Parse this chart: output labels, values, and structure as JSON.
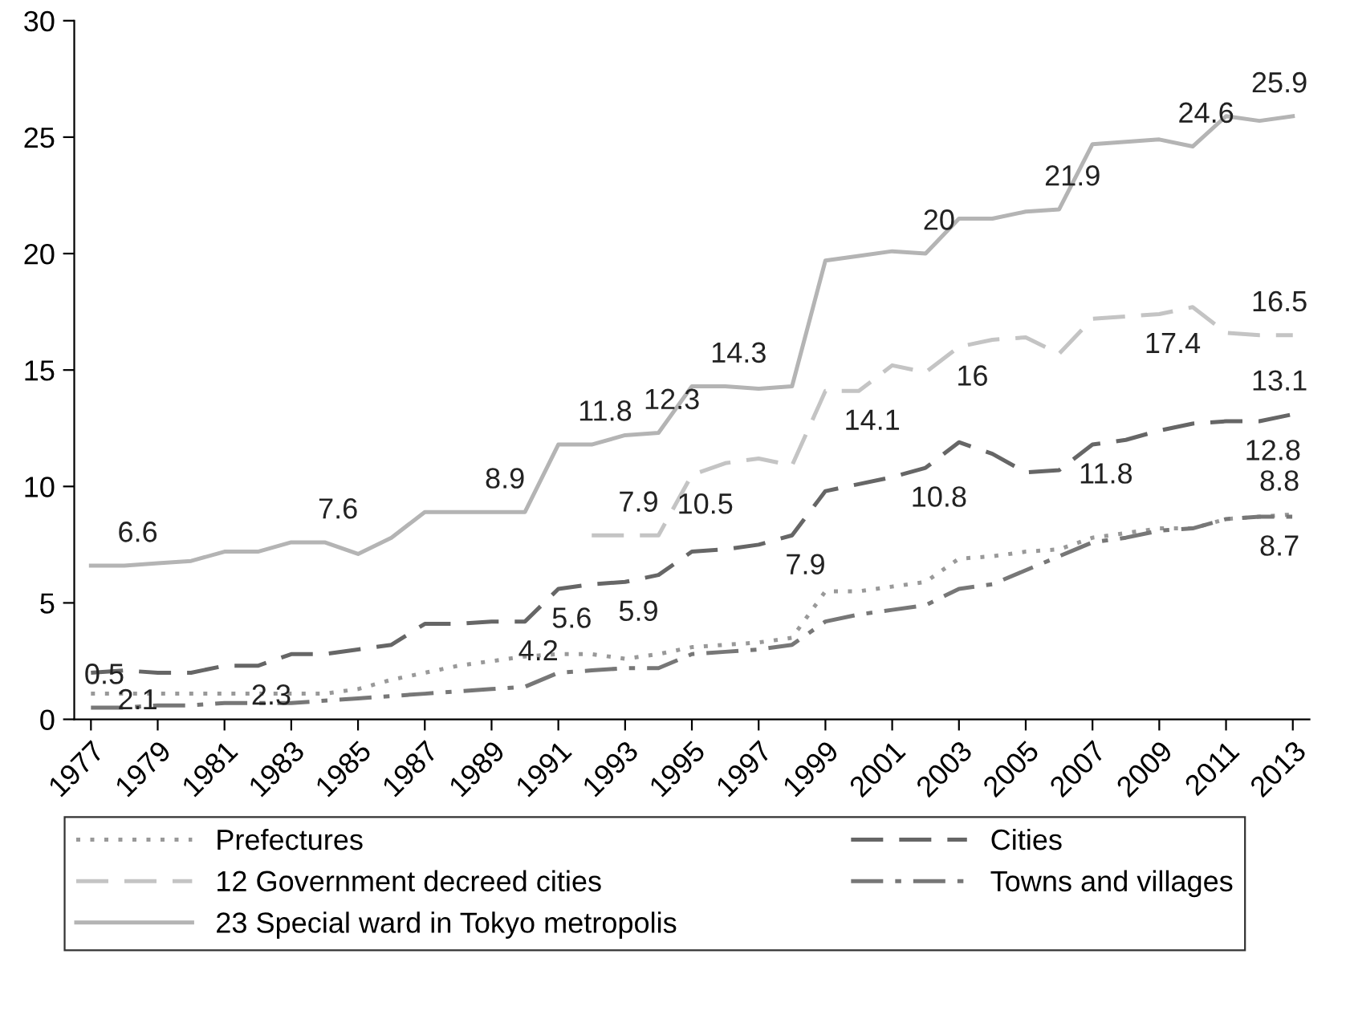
{
  "chart_data": {
    "type": "line",
    "x": [
      1977,
      1978,
      1979,
      1980,
      1981,
      1982,
      1983,
      1984,
      1985,
      1986,
      1987,
      1988,
      1989,
      1990,
      1991,
      1992,
      1993,
      1994,
      1995,
      1996,
      1997,
      1998,
      1999,
      2000,
      2001,
      2002,
      2003,
      2004,
      2005,
      2006,
      2007,
      2008,
      2009,
      2010,
      2011,
      2012,
      2013
    ],
    "series": [
      {
        "name": "Prefectures",
        "color": "#999999",
        "line_style": "dotted",
        "values": [
          1.1,
          1.1,
          1.1,
          1.1,
          1.1,
          1.1,
          1.1,
          1.1,
          1.3,
          1.7,
          2.0,
          2.3,
          2.5,
          2.7,
          2.8,
          2.8,
          2.6,
          2.8,
          3.1,
          3.2,
          3.3,
          3.5,
          5.5,
          5.5,
          5.7,
          5.9,
          6.9,
          7.0,
          7.2,
          7.3,
          7.8,
          8.0,
          8.2,
          8.2,
          8.6,
          8.7,
          8.8
        ],
        "value_labels": [
          null,
          null,
          null,
          null,
          null,
          null,
          null,
          null,
          null,
          null,
          null,
          null,
          null,
          null,
          null,
          null,
          null,
          null,
          null,
          null,
          null,
          null,
          null,
          null,
          null,
          null,
          null,
          null,
          null,
          null,
          null,
          null,
          null,
          null,
          null,
          null,
          "8.8"
        ]
      },
      {
        "name": "12 Government decreed cities",
        "color": "#c4c4c4",
        "line_style": "dashed",
        "values": [
          null,
          null,
          null,
          null,
          null,
          null,
          null,
          null,
          null,
          null,
          null,
          null,
          null,
          null,
          null,
          7.9,
          7.9,
          7.9,
          10.5,
          11.0,
          11.2,
          10.9,
          14.1,
          14.1,
          15.2,
          14.9,
          16.0,
          16.3,
          16.4,
          15.7,
          17.2,
          17.3,
          17.4,
          17.7,
          16.6,
          16.5,
          16.5
        ],
        "value_labels": [
          null,
          null,
          null,
          null,
          null,
          null,
          null,
          null,
          null,
          null,
          null,
          null,
          null,
          null,
          null,
          null,
          "7.9",
          null,
          "10.5",
          null,
          null,
          null,
          null,
          "14.1",
          null,
          null,
          "16",
          null,
          null,
          null,
          null,
          null,
          "17.4",
          null,
          null,
          null,
          "16.5"
        ]
      },
      {
        "name": "23 Special ward in Tokyo metropolis",
        "color": "#b4b4b4",
        "line_style": "solid",
        "values": [
          6.6,
          6.6,
          6.7,
          6.8,
          7.2,
          7.2,
          7.6,
          7.6,
          7.1,
          7.8,
          8.9,
          8.9,
          8.9,
          8.9,
          11.8,
          11.8,
          12.2,
          12.3,
          14.3,
          14.3,
          14.2,
          14.3,
          19.7,
          19.9,
          20.1,
          20,
          21.5,
          21.5,
          21.8,
          21.9,
          24.7,
          24.8,
          24.9,
          24.6,
          25.9,
          25.7,
          25.9
        ],
        "value_labels": [
          null,
          "6.6",
          null,
          null,
          null,
          null,
          null,
          "7.6",
          null,
          null,
          null,
          null,
          "8.9",
          null,
          null,
          "11.8",
          null,
          "12.3",
          null,
          "14.3",
          null,
          null,
          null,
          null,
          null,
          "20",
          null,
          null,
          null,
          "21.9",
          null,
          null,
          null,
          "24.6",
          null,
          null,
          "25.9"
        ]
      },
      {
        "name": "Cities",
        "color": "#666666",
        "line_style": "dashed",
        "values": [
          2.0,
          2.1,
          2.0,
          2.0,
          2.3,
          2.3,
          2.8,
          2.8,
          3.0,
          3.2,
          4.1,
          4.1,
          4.2,
          4.2,
          5.6,
          5.8,
          5.9,
          6.2,
          7.2,
          7.3,
          7.5,
          7.9,
          9.8,
          10.1,
          10.4,
          10.8,
          11.9,
          11.4,
          10.6,
          10.7,
          11.8,
          12.0,
          12.4,
          12.7,
          12.8,
          12.8,
          13.1
        ],
        "value_labels": [
          null,
          "2.1",
          null,
          null,
          null,
          "2.3",
          null,
          null,
          null,
          null,
          null,
          null,
          null,
          "4.2",
          "5.6",
          null,
          "5.9",
          null,
          null,
          null,
          null,
          "7.9",
          null,
          null,
          null,
          "10.8",
          null,
          null,
          null,
          null,
          "11.8",
          null,
          null,
          null,
          null,
          "12.8",
          "13.1"
        ]
      },
      {
        "name": "Towns and villages",
        "color": "#777777",
        "line_style": "dashdot",
        "values": [
          0.5,
          0.5,
          0.6,
          0.6,
          0.7,
          0.7,
          0.7,
          0.8,
          0.9,
          1.0,
          1.1,
          1.2,
          1.3,
          1.4,
          2.0,
          2.1,
          2.2,
          2.2,
          2.8,
          2.9,
          3.0,
          3.2,
          4.2,
          4.5,
          4.7,
          4.9,
          5.6,
          5.8,
          6.4,
          7.0,
          7.6,
          7.8,
          8.1,
          8.2,
          8.6,
          8.7,
          8.7
        ],
        "value_labels": [
          "0.5",
          null,
          null,
          null,
          null,
          null,
          null,
          null,
          null,
          null,
          null,
          null,
          null,
          null,
          null,
          null,
          null,
          null,
          null,
          null,
          null,
          null,
          null,
          null,
          null,
          null,
          null,
          null,
          null,
          null,
          null,
          null,
          null,
          null,
          null,
          null,
          "8.7"
        ]
      }
    ],
    "xlim": [
      1976.5,
      2013.5
    ],
    "xticks": [
      1977,
      1979,
      1981,
      1983,
      1985,
      1987,
      1989,
      1991,
      1993,
      1995,
      1997,
      1999,
      2001,
      2003,
      2005,
      2007,
      2009,
      2011,
      2013
    ],
    "ylim": [
      0,
      30
    ],
    "yticks": [
      0,
      5,
      10,
      15,
      20,
      25,
      30
    ],
    "legend": "bottom",
    "grid": false,
    "marker": "none"
  }
}
